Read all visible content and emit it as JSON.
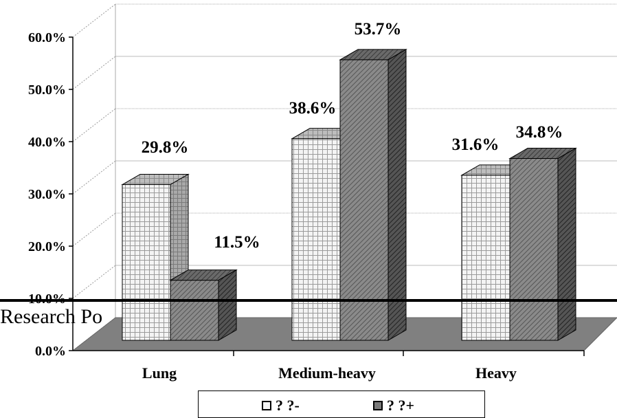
{
  "chart_data": {
    "type": "bar",
    "categories": [
      "Lung",
      "Medium-heavy",
      "Heavy"
    ],
    "series": [
      {
        "name": "? ?-",
        "values": [
          29.8,
          38.6,
          31.6
        ],
        "pattern": "grid-light"
      },
      {
        "name": "? ?+",
        "values": [
          11.5,
          53.7,
          34.8
        ],
        "pattern": "hatch-dark"
      }
    ],
    "data_labels": [
      [
        "29.8%",
        "38.6%",
        "31.6%"
      ],
      [
        "11.5%",
        "53.7%",
        "34.8%"
      ]
    ],
    "y_ticks": [
      "0.0%",
      "10.0%",
      "20.0%",
      "30.0%",
      "40.0%",
      "50.0%",
      "60.0%"
    ],
    "ylim": [
      0,
      60
    ],
    "grid": true,
    "three_d": true,
    "legend_position": "bottom",
    "title": "",
    "xlabel": "",
    "ylabel": ""
  },
  "legend": {
    "item1": "? ?-",
    "item2": "? ?+"
  },
  "overlay": {
    "caption": "Research Po"
  },
  "colors": {
    "series1_face": "#f2f2f2",
    "series1_grid": "#9a9a9a",
    "series2_face": "#7a7a7a",
    "series2_hatch": "#4a4a4a",
    "floor": "#808080",
    "gridline": "#999999"
  }
}
